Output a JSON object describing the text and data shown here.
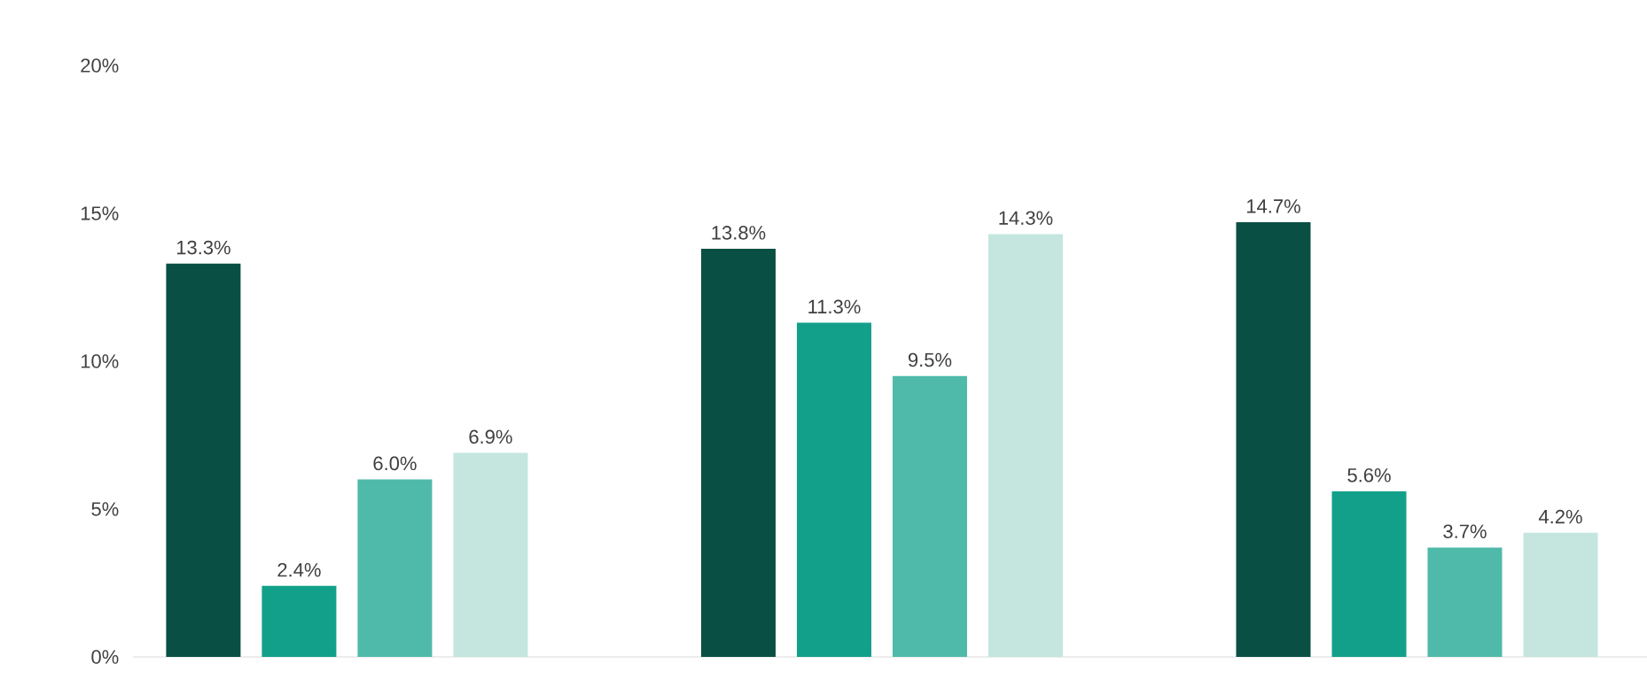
{
  "chart_data": {
    "type": "bar",
    "categories": [
      null,
      null,
      null
    ],
    "series": [
      {
        "color": "#0a4f44",
        "values": [
          13.3,
          13.8,
          14.7
        ],
        "value_labels": [
          "13.3%",
          "13.8%",
          "14.7%"
        ]
      },
      {
        "color": "#13a08a",
        "values": [
          2.4,
          11.3,
          5.6
        ],
        "value_labels": [
          "2.4%",
          "11.3%",
          "5.6%"
        ]
      },
      {
        "color": "#4fbaa9",
        "values": [
          6.0,
          9.5,
          3.7
        ],
        "value_labels": [
          "6.0%",
          "9.5%",
          "3.7%"
        ]
      },
      {
        "color": "#c4e6df",
        "values": [
          6.9,
          14.3,
          4.2
        ],
        "value_labels": [
          "6.9%",
          "14.3%",
          "4.2%"
        ]
      }
    ],
    "ylim": [
      0,
      20
    ],
    "yticks": [
      {
        "value": 0,
        "label": "0%"
      },
      {
        "value": 5,
        "label": "5%"
      },
      {
        "value": 10,
        "label": "10%"
      },
      {
        "value": 15,
        "label": "15%"
      },
      {
        "value": 20,
        "label": "20%"
      }
    ],
    "tick_labels": "y"
  }
}
